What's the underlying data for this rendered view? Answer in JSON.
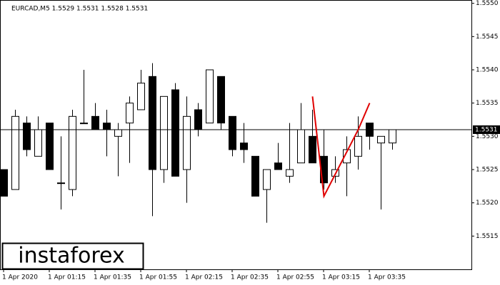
{
  "chart_data": {
    "type": "candlestick",
    "title": "EURCAD,M5  1.5529 1.5531 1.5528 1.5531",
    "watermark": "instaforex",
    "categories": [
      "1 Apr 2020",
      null,
      null,
      null,
      "1 Apr 01:15",
      null,
      null,
      null,
      "1 Apr 01:35",
      null,
      null,
      null,
      "1 Apr 01:55",
      null,
      null,
      null,
      "1 Apr 02:15",
      null,
      null,
      null,
      "1 Apr 02:35",
      null,
      null,
      null,
      "1 Apr 02:55",
      null,
      null,
      null,
      "1 Apr 03:15",
      null,
      null,
      null,
      "1 Apr 03:35",
      null,
      null
    ],
    "open": [
      1.5525,
      1.5522,
      1.5532,
      1.5527,
      1.5532,
      1.5523,
      1.5522,
      1.5532,
      1.5533,
      1.5532,
      1.553,
      1.5532,
      1.5534,
      1.5539,
      1.5525,
      1.5537,
      1.5525,
      1.5534,
      1.5532,
      1.5539,
      1.5533,
      1.5529,
      1.5527,
      1.5522,
      1.5526,
      1.5524,
      1.5526,
      1.553,
      1.5527,
      1.5524,
      1.5526,
      1.5527,
      1.5532,
      1.5529,
      1.5529
    ],
    "high": [
      1.5525,
      1.5534,
      1.5533,
      1.5533,
      1.5532,
      1.553,
      1.5534,
      1.554,
      1.5535,
      1.5534,
      1.5532,
      1.5536,
      1.554,
      1.5541,
      1.5536,
      1.5538,
      1.5536,
      1.5535,
      1.554,
      1.5539,
      1.5533,
      1.5532,
      1.5527,
      1.5525,
      1.5529,
      1.5532,
      1.5535,
      1.5534,
      1.5531,
      1.5527,
      1.553,
      1.5533,
      1.5532,
      1.553,
      1.5531
    ],
    "low": [
      1.5521,
      1.5522,
      1.5527,
      1.5527,
      1.5525,
      1.5519,
      1.5521,
      1.5532,
      1.5531,
      1.5527,
      1.5524,
      1.5526,
      1.5534,
      1.5518,
      1.5523,
      1.5524,
      1.552,
      1.553,
      1.5532,
      1.5531,
      1.5527,
      1.5526,
      1.5521,
      1.5517,
      1.5525,
      1.5523,
      1.5526,
      1.5526,
      1.5522,
      1.5523,
      1.5521,
      1.5525,
      1.5528,
      1.5519,
      1.5528
    ],
    "close": [
      1.5521,
      1.5533,
      1.5528,
      1.5531,
      1.5525,
      1.5523,
      1.5533,
      1.5532,
      1.5531,
      1.5531,
      1.5531,
      1.5535,
      1.5538,
      1.5525,
      1.5536,
      1.5524,
      1.5533,
      1.5531,
      1.554,
      1.5532,
      1.5528,
      1.5528,
      1.5521,
      1.5525,
      1.5525,
      1.5525,
      1.5531,
      1.5526,
      1.5523,
      1.5525,
      1.5528,
      1.553,
      1.553,
      1.553,
      1.5531
    ],
    "last_price": 1.5531,
    "pattern": {
      "color": "#e00000",
      "index": [
        27,
        28,
        31,
        32
      ],
      "values": [
        1.5536,
        1.5521,
        1.5531,
        1.5535
      ]
    },
    "ylim": [
      1.551,
      1.55505
    ],
    "yticks": [
      1.5515,
      {
        "value": 1.552,
        "label": "1.5520"
      },
      1.5525,
      {
        "value": 1.553,
        "label": "1.5530"
      },
      1.5535,
      {
        "value": 1.554,
        "label": "1.5540"
      },
      1.5545,
      {
        "value": 1.555,
        "label": "1.5550"
      }
    ]
  }
}
